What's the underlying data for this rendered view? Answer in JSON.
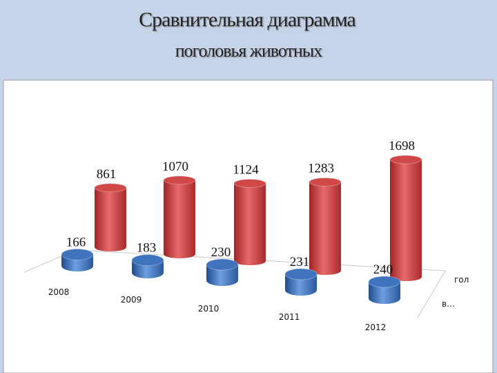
{
  "chart_data": {
    "type": "bar3d",
    "title": "Сравнительная диаграмма",
    "subtitle": "поголовья животных",
    "categories": [
      "2008",
      "2009",
      "2010",
      "2011",
      "2012"
    ],
    "series": [
      {
        "name": "гол",
        "color": "#d04848",
        "values": [
          861,
          1070,
          1124,
          1283,
          1698
        ]
      },
      {
        "name": "в…",
        "color": "#3f73bd",
        "values": [
          166,
          183,
          230,
          231,
          240
        ]
      }
    ]
  }
}
